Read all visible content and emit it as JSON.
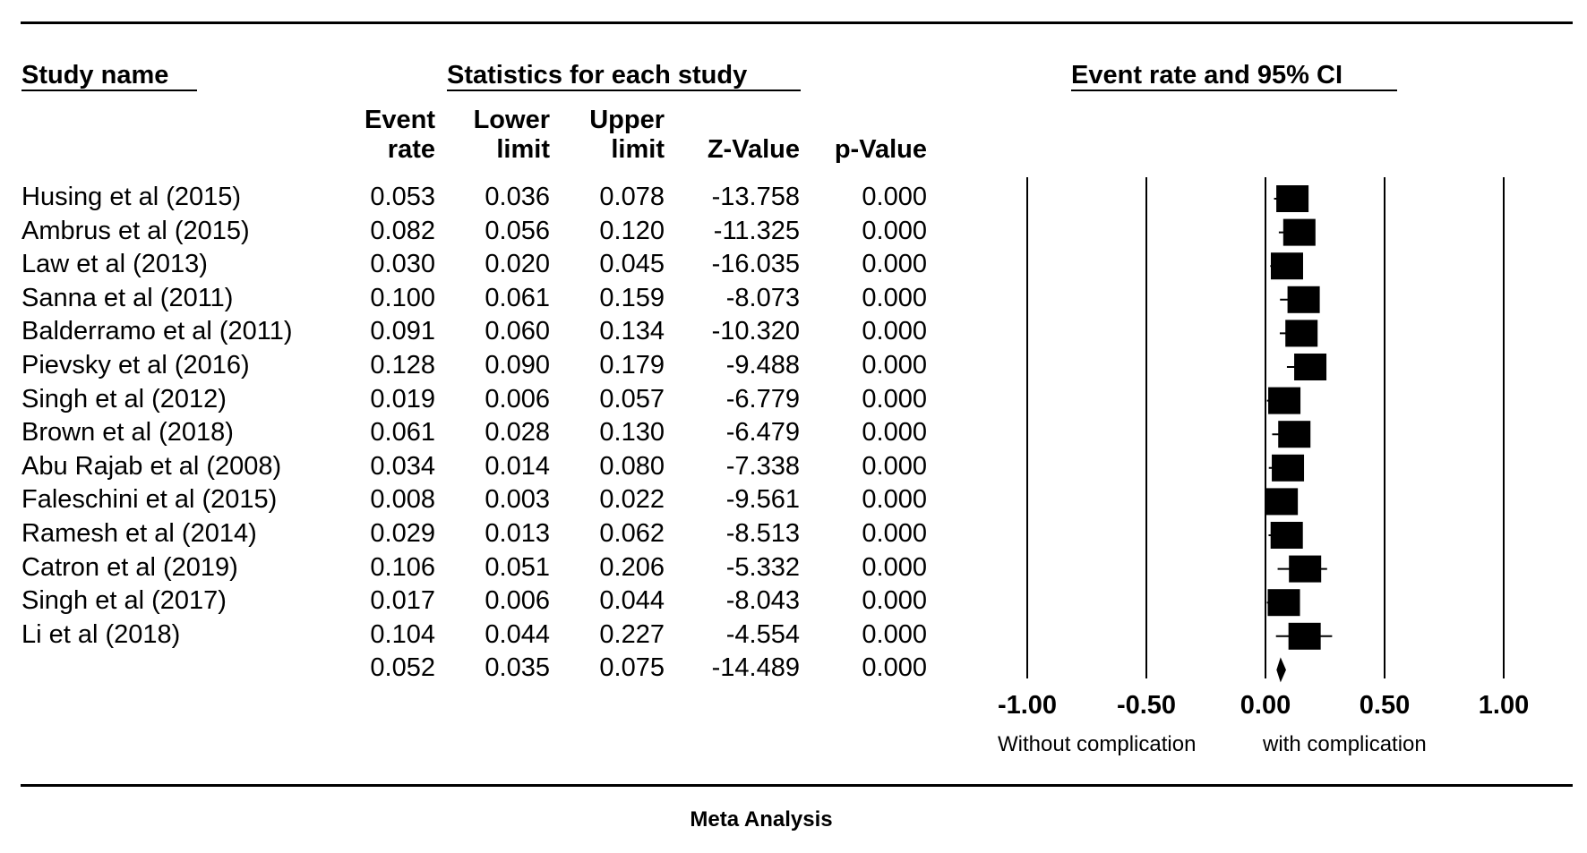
{
  "headers": {
    "study_name": "Study name",
    "statistics": "Statistics for each study",
    "forest": "Event rate and 95% CI"
  },
  "columns": [
    {
      "line1": "Event",
      "line2": "rate"
    },
    {
      "line1": "Lower",
      "line2": "limit"
    },
    {
      "line1": "Upper",
      "line2": "limit"
    },
    {
      "line1": "",
      "line2": "Z-Value"
    },
    {
      "line1": "",
      "line2": "p-Value"
    }
  ],
  "rows": [
    {
      "name": "Husing et al (2015)",
      "event_rate": "0.053",
      "lower": "0.036",
      "upper": "0.078",
      "z": "-13.758",
      "p": "0.000"
    },
    {
      "name": "Ambrus et al (2015)",
      "event_rate": "0.082",
      "lower": "0.056",
      "upper": "0.120",
      "z": "-11.325",
      "p": "0.000"
    },
    {
      "name": "Law et al (2013)",
      "event_rate": "0.030",
      "lower": "0.020",
      "upper": "0.045",
      "z": "-16.035",
      "p": "0.000"
    },
    {
      "name": "Sanna et al (2011)",
      "event_rate": "0.100",
      "lower": "0.061",
      "upper": "0.159",
      "z": "-8.073",
      "p": "0.000"
    },
    {
      "name": "Balderramo et al (2011)",
      "event_rate": "0.091",
      "lower": "0.060",
      "upper": "0.134",
      "z": "-10.320",
      "p": "0.000"
    },
    {
      "name": "Pievsky et al (2016)",
      "event_rate": "0.128",
      "lower": "0.090",
      "upper": "0.179",
      "z": "-9.488",
      "p": "0.000"
    },
    {
      "name": "Singh et al (2012)",
      "event_rate": "0.019",
      "lower": "0.006",
      "upper": "0.057",
      "z": "-6.779",
      "p": "0.000"
    },
    {
      "name": "Brown et al (2018)",
      "event_rate": "0.061",
      "lower": "0.028",
      "upper": "0.130",
      "z": "-6.479",
      "p": "0.000"
    },
    {
      "name": "Abu Rajab et al (2008)",
      "event_rate": "0.034",
      "lower": "0.014",
      "upper": "0.080",
      "z": "-7.338",
      "p": "0.000"
    },
    {
      "name": "Faleschini et al (2015)",
      "event_rate": "0.008",
      "lower": "0.003",
      "upper": "0.022",
      "z": "-9.561",
      "p": "0.000"
    },
    {
      "name": "Ramesh et al (2014)",
      "event_rate": "0.029",
      "lower": "0.013",
      "upper": "0.062",
      "z": "-8.513",
      "p": "0.000"
    },
    {
      "name": "Catron et al (2019)",
      "event_rate": "0.106",
      "lower": "0.051",
      "upper": "0.206",
      "z": "-5.332",
      "p": "0.000"
    },
    {
      "name": "Singh et al (2017)",
      "event_rate": "0.017",
      "lower": "0.006",
      "upper": "0.044",
      "z": "-8.043",
      "p": "0.000"
    },
    {
      "name": "Li et al (2018)",
      "event_rate": "0.104",
      "lower": "0.044",
      "upper": "0.227",
      "z": "-4.554",
      "p": "0.000"
    }
  ],
  "summary": {
    "event_rate": "0.052",
    "lower": "0.035",
    "upper": "0.075",
    "z": "-14.489",
    "p": "0.000"
  },
  "side_labels": {
    "left": "Without complication",
    "right": "with complication"
  },
  "footer": "Meta Analysis",
  "chart_data": {
    "type": "forest",
    "x_ticks": [
      -1.0,
      -0.5,
      0.0,
      0.5,
      1.0
    ],
    "x_tick_labels": [
      "-1.00",
      "-0.50",
      "0.00",
      "0.50",
      "1.00"
    ],
    "xlim": [
      -1.0,
      1.0
    ],
    "grid": "vertical lines at ticks",
    "studies": [
      {
        "name": "Husing et al (2015)",
        "estimate": 0.053,
        "lower": 0.036,
        "upper": 0.078
      },
      {
        "name": "Ambrus et al (2015)",
        "estimate": 0.082,
        "lower": 0.056,
        "upper": 0.12
      },
      {
        "name": "Law et al (2013)",
        "estimate": 0.03,
        "lower": 0.02,
        "upper": 0.045
      },
      {
        "name": "Sanna et al (2011)",
        "estimate": 0.1,
        "lower": 0.061,
        "upper": 0.159
      },
      {
        "name": "Balderramo et al (2011)",
        "estimate": 0.091,
        "lower": 0.06,
        "upper": 0.134
      },
      {
        "name": "Pievsky et al (2016)",
        "estimate": 0.128,
        "lower": 0.09,
        "upper": 0.179
      },
      {
        "name": "Singh et al (2012)",
        "estimate": 0.019,
        "lower": 0.006,
        "upper": 0.057
      },
      {
        "name": "Brown et al (2018)",
        "estimate": 0.061,
        "lower": 0.028,
        "upper": 0.13
      },
      {
        "name": "Abu Rajab et al (2008)",
        "estimate": 0.034,
        "lower": 0.014,
        "upper": 0.08
      },
      {
        "name": "Faleschini et al (2015)",
        "estimate": 0.008,
        "lower": 0.003,
        "upper": 0.022
      },
      {
        "name": "Ramesh et al (2014)",
        "estimate": 0.029,
        "lower": 0.013,
        "upper": 0.062
      },
      {
        "name": "Catron et al (2019)",
        "estimate": 0.106,
        "lower": 0.051,
        "upper": 0.206
      },
      {
        "name": "Singh et al (2017)",
        "estimate": 0.017,
        "lower": 0.006,
        "upper": 0.044
      },
      {
        "name": "Li et al (2018)",
        "estimate": 0.104,
        "lower": 0.044,
        "upper": 0.227
      }
    ],
    "summary": {
      "estimate": 0.052,
      "lower": 0.035,
      "upper": 0.075
    },
    "colors": {
      "marker": "#000000",
      "grid": "#000000"
    }
  }
}
